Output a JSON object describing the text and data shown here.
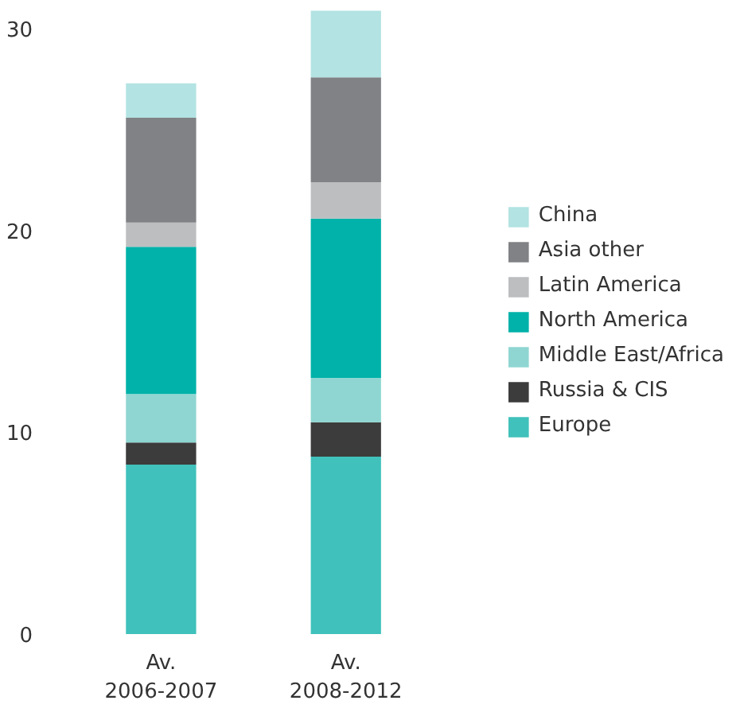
{
  "chart_data": {
    "type": "bar",
    "stacked": true,
    "categories": [
      "Av.\n2006-2007",
      "Av.\n2008-2012"
    ],
    "series": [
      {
        "name": "Europe",
        "color": "#40c1bb",
        "values": [
          8.4,
          8.8
        ]
      },
      {
        "name": "Russia & CIS",
        "color": "#3c3c3c",
        "values": [
          1.1,
          1.7
        ]
      },
      {
        "name": "Middle East/Africa",
        "color": "#8fd6d2",
        "values": [
          2.4,
          2.2
        ]
      },
      {
        "name": "North America",
        "color": "#00b2a9",
        "values": [
          7.3,
          7.9
        ]
      },
      {
        "name": "Latin America",
        "color": "#bcbec0",
        "values": [
          1.2,
          1.8
        ]
      },
      {
        "name": "Asia other",
        "color": "#808285",
        "values": [
          5.2,
          5.2
        ]
      },
      {
        "name": "China",
        "color": "#b3e3e3",
        "values": [
          1.7,
          3.3
        ]
      }
    ],
    "ylim": [
      0,
      31
    ],
    "yticks": [
      0,
      10,
      20,
      30
    ],
    "grid": false,
    "legend": "right"
  }
}
